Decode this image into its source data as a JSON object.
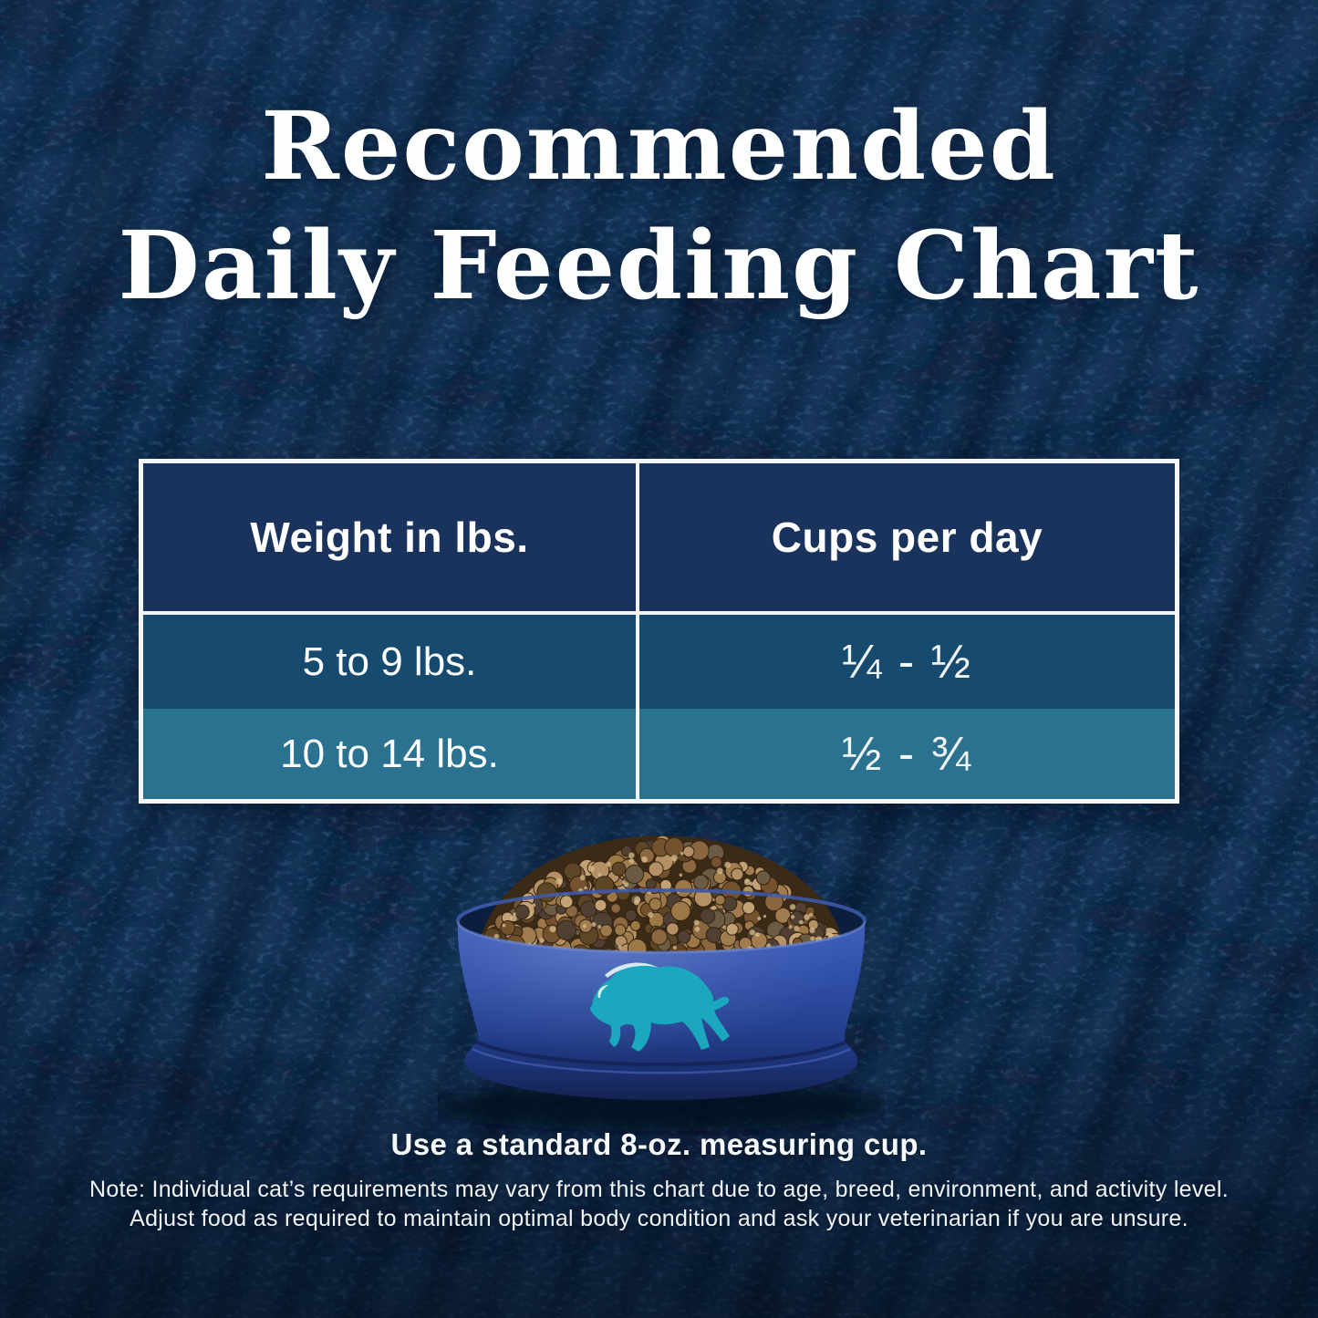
{
  "title": {
    "line1": "Recommended",
    "line2": "Daily Feeding Chart"
  },
  "table": {
    "headers": [
      "Weight in lbs.",
      "Cups per day"
    ],
    "rows": [
      {
        "weight": "5 to 9 lbs.",
        "cups": "¼ - ½"
      },
      {
        "weight": "10 to 14 lbs.",
        "cups": "½ - ¾"
      }
    ]
  },
  "caption": "Use a standard 8-oz. measuring cup.",
  "note": {
    "line1": "Note: Individual cat’s requirements may vary from this chart due to age, breed, environment, and activity level.",
    "line2": "Adjust food as required to maintain optimal body condition and ask your veterinarian if you are unsure."
  },
  "bowl": {
    "logo": "blue-buffalo-leaping-bison"
  },
  "colors": {
    "background": "#122f52",
    "table_header": "#1a335c",
    "row_1": "#164a6e",
    "row_2": "#2b7291",
    "table_border": "#f4f7f9",
    "bowl_blue": "#2f4fa8",
    "buffalo_teal": "#1ba7bd",
    "kibble": [
      "#b59064",
      "#a07c4e",
      "#c3a276",
      "#8a6740",
      "#74522e",
      "#9c7847",
      "#5e4526",
      "#6b5a44",
      "#4f4033"
    ],
    "kibble_highlight": "#d9bd8d"
  },
  "chart_data": {
    "type": "table",
    "title": "Recommended Daily Feeding Chart",
    "columns": [
      "Weight in lbs.",
      "Cups per day"
    ],
    "rows": [
      [
        "5 to 9 lbs.",
        "¼ - ½"
      ],
      [
        "10 to 14 lbs.",
        "½ - ¾"
      ]
    ],
    "footnote": "Use a standard 8-oz. measuring cup.",
    "note": "Individual cat’s requirements may vary from this chart due to age, breed, environment, and activity level. Adjust food as required to maintain optimal body condition and ask your veterinarian if you are unsure."
  }
}
